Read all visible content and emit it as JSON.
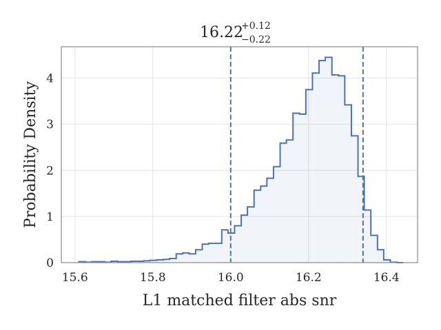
{
  "chart_data": {
    "type": "histogram-step",
    "title": {
      "value": "16.22",
      "upper": "+0.12",
      "lower": "−0.22"
    },
    "xlabel": "L1 matched filter abs snr",
    "ylabel": "Probability Density",
    "xlim": [
      15.565,
      16.48
    ],
    "ylim": [
      0,
      4.68
    ],
    "xticks": [
      15.6,
      15.8,
      16.0,
      16.2,
      16.4
    ],
    "xtick_labels": [
      "15.6",
      "15.8",
      "16.0",
      "16.2",
      "16.4"
    ],
    "yticks": [
      0,
      1,
      2,
      3,
      4
    ],
    "ytick_labels": [
      "0",
      "1",
      "2",
      "3",
      "4"
    ],
    "grid": true,
    "color": "#4c72b0",
    "quantile_lines": [
      16.0,
      16.34
    ],
    "bin_edges": [
      15.61,
      15.627,
      15.643,
      15.66,
      15.677,
      15.693,
      15.71,
      15.727,
      15.743,
      15.76,
      15.777,
      15.793,
      15.81,
      15.827,
      15.843,
      15.86,
      15.877,
      15.893,
      15.91,
      15.927,
      15.943,
      15.96,
      15.977,
      15.993,
      16.01,
      16.027,
      16.043,
      16.06,
      16.077,
      16.093,
      16.11,
      16.127,
      16.143,
      16.16,
      16.177,
      16.193,
      16.21,
      16.227,
      16.243,
      16.26,
      16.277,
      16.293,
      16.31,
      16.327,
      16.343,
      16.36,
      16.377,
      16.393,
      16.41,
      16.427,
      16.443
    ],
    "densities": [
      0.02,
      0.01,
      0.02,
      0.02,
      0.01,
      0.03,
      0.02,
      0.02,
      0.03,
      0.03,
      0.04,
      0.05,
      0.06,
      0.07,
      0.09,
      0.19,
      0.21,
      0.19,
      0.28,
      0.4,
      0.42,
      0.42,
      0.71,
      0.64,
      0.8,
      1.03,
      1.21,
      1.57,
      1.66,
      1.83,
      2.08,
      2.59,
      2.66,
      3.24,
      3.22,
      3.75,
      4.11,
      4.38,
      4.45,
      4.07,
      4.05,
      3.42,
      2.75,
      1.87,
      1.14,
      0.59,
      0.28,
      0.06,
      0.01,
      0.0
    ]
  }
}
